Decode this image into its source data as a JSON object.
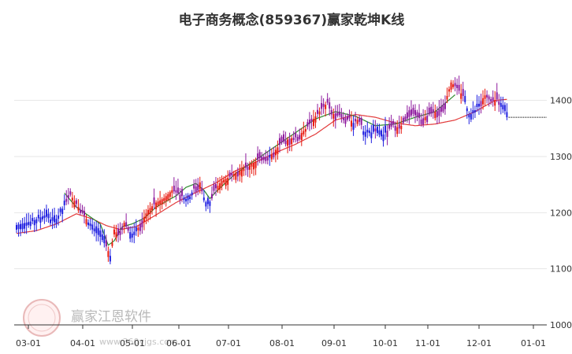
{
  "chart_data": {
    "type": "candlestick",
    "title": "电子商务概念(859367)赢家乾坤K线",
    "x_tick_labels": [
      "03-01",
      "04-01",
      "05-01",
      "06-01",
      "07-01",
      "08-01",
      "09-01",
      "10-01",
      "11-01",
      "12-01",
      "01-01"
    ],
    "y_tick_labels": [
      "1000",
      "1100",
      "1200",
      "1300",
      "1400"
    ],
    "ylim": [
      1000,
      1460
    ],
    "grid": "horizontal",
    "last_close": 1370,
    "close_path": [
      [
        0,
        1178
      ],
      [
        8,
        1185
      ],
      [
        14,
        1195
      ],
      [
        19,
        1183
      ],
      [
        23,
        1207
      ],
      [
        27,
        1232
      ],
      [
        31,
        1210
      ],
      [
        34,
        1195
      ],
      [
        38,
        1170
      ],
      [
        42,
        1157
      ],
      [
        45,
        1140
      ],
      [
        47,
        1123
      ],
      [
        49,
        1170
      ],
      [
        51,
        1160
      ],
      [
        54,
        1182
      ],
      [
        56,
        1168
      ],
      [
        59,
        1160
      ],
      [
        62,
        1180
      ],
      [
        66,
        1205
      ],
      [
        70,
        1218
      ],
      [
        74,
        1226
      ],
      [
        78,
        1240
      ],
      [
        82,
        1232
      ],
      [
        86,
        1222
      ],
      [
        89,
        1243
      ],
      [
        92,
        1254
      ],
      [
        94,
        1222
      ],
      [
        97,
        1212
      ],
      [
        99,
        1239
      ],
      [
        103,
        1257
      ],
      [
        107,
        1264
      ],
      [
        111,
        1274
      ],
      [
        115,
        1280
      ],
      [
        119,
        1288
      ],
      [
        123,
        1300
      ],
      [
        127,
        1298
      ],
      [
        130,
        1312
      ],
      [
        133,
        1325
      ],
      [
        137,
        1332
      ],
      [
        141,
        1335
      ],
      [
        145,
        1349
      ],
      [
        149,
        1367
      ],
      [
        153,
        1385
      ],
      [
        156,
        1396
      ],
      [
        158,
        1375
      ],
      [
        161,
        1378
      ],
      [
        164,
        1365
      ],
      [
        166,
        1372
      ],
      [
        169,
        1360
      ],
      [
        172,
        1368
      ],
      [
        174,
        1345
      ],
      [
        177,
        1342
      ],
      [
        180,
        1345
      ],
      [
        183,
        1336
      ],
      [
        186,
        1346
      ],
      [
        189,
        1357
      ],
      [
        192,
        1350
      ],
      [
        195,
        1365
      ],
      [
        199,
        1376
      ],
      [
        203,
        1366
      ],
      [
        207,
        1375
      ],
      [
        211,
        1381
      ],
      [
        215,
        1396
      ],
      [
        218,
        1432
      ],
      [
        221,
        1422
      ],
      [
        224,
        1408
      ],
      [
        227,
        1375
      ],
      [
        229,
        1377
      ],
      [
        232,
        1394
      ],
      [
        235,
        1409
      ],
      [
        238,
        1398
      ],
      [
        241,
        1402
      ],
      [
        244,
        1392
      ],
      [
        246,
        1370
      ]
    ],
    "ma_long": [
      [
        0,
        1163
      ],
      [
        10,
        1168
      ],
      [
        20,
        1180
      ],
      [
        30,
        1198
      ],
      [
        38,
        1189
      ],
      [
        45,
        1177
      ],
      [
        52,
        1170
      ],
      [
        60,
        1175
      ],
      [
        70,
        1196
      ],
      [
        80,
        1218
      ],
      [
        90,
        1236
      ],
      [
        100,
        1253
      ],
      [
        110,
        1275
      ],
      [
        120,
        1290
      ],
      [
        130,
        1307
      ],
      [
        140,
        1322
      ],
      [
        150,
        1340
      ],
      [
        160,
        1365
      ],
      [
        170,
        1375
      ],
      [
        180,
        1370
      ],
      [
        190,
        1360
      ],
      [
        200,
        1355
      ],
      [
        210,
        1358
      ],
      [
        220,
        1365
      ],
      [
        230,
        1380
      ],
      [
        240,
        1400
      ],
      [
        246,
        1402
      ]
    ],
    "ma_short": [
      [
        24,
        1235
      ],
      [
        30,
        1210
      ],
      [
        36,
        1195
      ],
      [
        42,
        1180
      ],
      [
        46,
        1142
      ],
      [
        49,
        1150
      ],
      [
        53,
        1175
      ],
      [
        58,
        1180
      ],
      [
        64,
        1190
      ],
      [
        70,
        1210
      ],
      [
        80,
        1230
      ],
      [
        85,
        1245
      ],
      [
        90,
        1252
      ],
      [
        94,
        1240
      ],
      [
        97,
        1225
      ],
      [
        100,
        1237
      ],
      [
        110,
        1270
      ],
      [
        150,
        1367
      ],
      [
        160,
        1380
      ],
      [
        170,
        1372
      ],
      [
        180,
        1355
      ],
      [
        190,
        1358
      ],
      [
        200,
        1370
      ],
      [
        210,
        1380
      ],
      [
        220,
        1410
      ]
    ]
  }
}
